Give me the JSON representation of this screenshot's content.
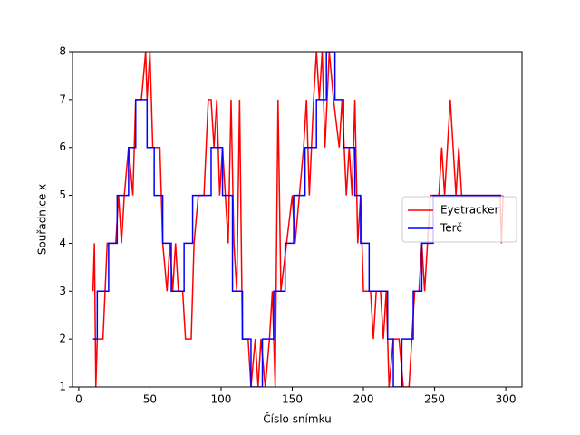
{
  "chart_data": {
    "type": "line",
    "x_label": "Číslo snímku",
    "y_label": "Souřadnice x",
    "xlim": [
      -4.4,
      311.4
    ],
    "ylim": [
      1,
      8
    ],
    "xticks": [
      0,
      50,
      100,
      150,
      200,
      250,
      300
    ],
    "yticks": [
      1,
      2,
      3,
      4,
      5,
      6,
      7,
      8
    ],
    "legend": "center right",
    "series": [
      {
        "name": "Eyetracker",
        "color": "#ff0000",
        "x": [
          10,
          11,
          12,
          13,
          17,
          20,
          26,
          28,
          30,
          32,
          35,
          38,
          40,
          44,
          47,
          48,
          50,
          52,
          57,
          59,
          62,
          64,
          66,
          68,
          70,
          73,
          75,
          79,
          81,
          84,
          88,
          91,
          93,
          95,
          97,
          99,
          101,
          103,
          105,
          107,
          109,
          111,
          113,
          115,
          119,
          121,
          124,
          126,
          128,
          131,
          134,
          136,
          138,
          140,
          142,
          146,
          150,
          152,
          155,
          158,
          160,
          162,
          165,
          167,
          169,
          171,
          173,
          176,
          179,
          183,
          185,
          188,
          190,
          192,
          194,
          196,
          198,
          200,
          205,
          207,
          209,
          212,
          214,
          216,
          218,
          221,
          225,
          228,
          232,
          234,
          236,
          239,
          241,
          243,
          245,
          247,
          250,
          253,
          255,
          257,
          259,
          261,
          263,
          265,
          267,
          269,
          272,
          296,
          297,
          298
        ],
        "values": [
          3,
          4,
          1,
          2,
          2,
          4,
          4,
          5,
          4,
          5,
          6,
          5,
          7,
          7,
          8,
          7,
          8,
          6,
          6,
          4,
          3,
          4,
          3,
          4,
          3,
          3,
          2,
          2,
          4,
          5,
          5,
          7,
          7,
          6,
          7,
          5,
          6,
          5,
          4,
          7,
          4,
          3,
          7,
          2,
          2,
          1,
          2,
          1,
          2,
          1,
          2,
          3,
          1,
          7,
          3,
          4,
          5,
          4,
          5,
          6,
          7,
          5,
          7,
          8,
          7,
          8,
          6,
          8,
          7,
          6,
          7,
          5,
          6,
          5,
          7,
          4,
          5,
          3,
          3,
          2,
          3,
          3,
          2,
          3,
          1,
          2,
          2,
          1,
          1,
          2,
          3,
          3,
          4,
          3,
          4,
          5,
          5,
          5,
          6,
          5,
          6,
          7,
          6,
          5,
          6,
          5,
          5,
          5,
          4,
          5
        ]
      },
      {
        "name": "Terč",
        "color": "#0000ff",
        "x": [
          10,
          13,
          13,
          21,
          21,
          27,
          27,
          35,
          35,
          40,
          40,
          48,
          48,
          53,
          53,
          59,
          59,
          65,
          65,
          74,
          74,
          80,
          80,
          93,
          93,
          101,
          101,
          108,
          108,
          115,
          115,
          121,
          121,
          129,
          129,
          137,
          137,
          145,
          145,
          151,
          151,
          159,
          159,
          167,
          167,
          174,
          174,
          180,
          180,
          186,
          186,
          194,
          194,
          198,
          198,
          204,
          204,
          217,
          217,
          221,
          221,
          227,
          227,
          235,
          235,
          241,
          241,
          249,
          249,
          297
        ],
        "values": [
          2,
          2,
          3,
          3,
          4,
          4,
          5,
          5,
          6,
          6,
          7,
          7,
          6,
          6,
          5,
          5,
          4,
          4,
          3,
          3,
          4,
          4,
          5,
          5,
          6,
          6,
          5,
          5,
          3,
          3,
          2,
          2,
          1,
          1,
          2,
          2,
          3,
          3,
          4,
          4,
          5,
          5,
          6,
          6,
          7,
          7,
          8,
          8,
          7,
          7,
          6,
          6,
          5,
          5,
          4,
          4,
          3,
          3,
          2,
          2,
          1,
          1,
          2,
          2,
          3,
          3,
          4,
          4,
          5,
          5
        ]
      }
    ]
  }
}
